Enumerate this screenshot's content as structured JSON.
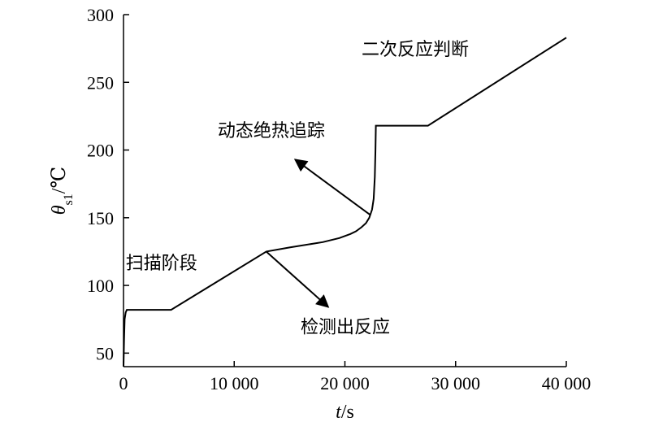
{
  "chart_data": {
    "type": "line",
    "xlabel_var": "t",
    "xlabel_unit": "/s",
    "ylabel_var": "θ",
    "ylabel_sub": "s1",
    "ylabel_unit": "/℃",
    "xlim": [
      0,
      40000
    ],
    "ylim": [
      40,
      300
    ],
    "x_ticks": [
      0,
      10000,
      20000,
      30000,
      40000
    ],
    "x_tick_labels": [
      "0",
      "10 000",
      "20 000",
      "30 000",
      "40 000"
    ],
    "y_ticks": [
      50,
      100,
      150,
      200,
      250,
      300
    ],
    "y_tick_labels": [
      "50",
      "100",
      "150",
      "200",
      "250",
      "300"
    ],
    "grid": false,
    "series": [
      {
        "x": [
          0,
          50,
          100,
          200,
          300,
          400,
          2000,
          4300,
          12900,
          15000,
          18000,
          19500,
          20500,
          21000,
          21500,
          21900,
          22200,
          22450,
          22600,
          22700,
          22760,
          22800,
          23000,
          27500,
          40000
        ],
        "y": [
          40,
          60,
          75,
          80,
          82,
          82,
          82,
          82,
          125,
          128,
          132,
          135,
          138,
          140,
          143,
          146,
          150,
          156,
          164,
          180,
          200,
          218,
          218,
          218,
          283
        ]
      }
    ],
    "annotations": [
      {
        "text": "扫描阶段",
        "x": 200,
        "y": 112
      },
      {
        "text": "检测出反应",
        "x": 16000,
        "y": 65,
        "arrow_from": [
          12900,
          125
        ],
        "arrow_to": [
          18500,
          84
        ]
      },
      {
        "text": "动态绝热追踪",
        "x": 8500,
        "y": 210,
        "arrow_from": [
          22300,
          152
        ],
        "arrow_to": [
          15500,
          193
        ]
      },
      {
        "text": "二次反应判断",
        "x": 21500,
        "y": 270
      }
    ]
  }
}
